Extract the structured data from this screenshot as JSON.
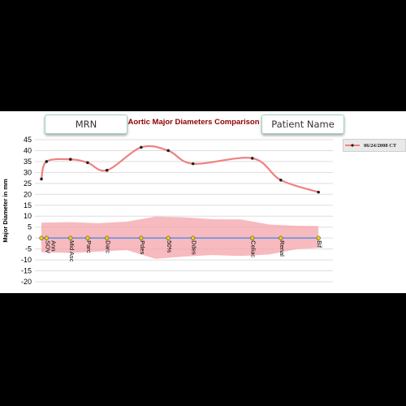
{
  "header": {
    "mrn_label": "MRN",
    "patient_name_label": "Patient Name"
  },
  "chart_data": {
    "type": "line",
    "title": "Aortic Major Diameters Comparison",
    "ylabel": "Major Diameter in mm",
    "xlabel": "",
    "ylim": [
      -20,
      45
    ],
    "yticks": [
      -20,
      -15,
      -10,
      -5,
      0,
      5,
      10,
      15,
      20,
      25,
      30,
      35,
      40,
      45
    ],
    "grid": true,
    "legend_position": "top-right",
    "categories": [
      "",
      "SOV",
      "Mid Asc",
      "Parc",
      "Darc",
      "Pdes",
      "50%",
      "Ddes",
      "Celiac",
      "Renal",
      "Bif"
    ],
    "category_wraps": {
      "SOV": [
        "SOV",
        "Ann"
      ],
      "Mid Asc": [
        "Mid Asc"
      ]
    },
    "series": [
      {
        "name": "06/24/2008 CT",
        "color": "#f08080",
        "x": [
          0,
          0.18,
          1.02,
          1.62,
          2.3,
          3.5,
          4.45,
          5.32,
          7.4,
          8.4,
          9.72
        ],
        "values": [
          27,
          35,
          36,
          34.5,
          31,
          41.5,
          40,
          34,
          36.5,
          26.5,
          21
        ]
      }
    ],
    "band": {
      "color": "#f4a3a8",
      "x": [
        0,
        1,
        2,
        3,
        4,
        5,
        6,
        7,
        8,
        9,
        9.72
      ],
      "upper": [
        7,
        7.3,
        6.8,
        7.5,
        9.8,
        9.5,
        8.6,
        8.5,
        6.2,
        5.6,
        5.5
      ],
      "lower": [
        -6.5,
        -6.8,
        -6.2,
        -5.5,
        -9.5,
        -8.5,
        -7.8,
        -8.2,
        -7.5,
        -5,
        -4.5
      ]
    },
    "baseline_markers_x": [
      0,
      0.18,
      1.02,
      1.62,
      2.3,
      3.5,
      4.45,
      5.32,
      7.4,
      8.4,
      9.72
    ]
  }
}
